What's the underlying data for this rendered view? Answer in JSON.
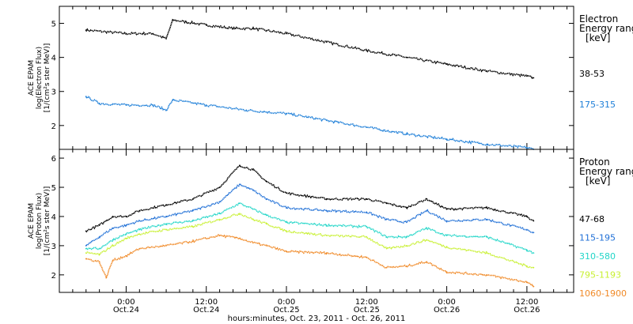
{
  "chart_data": [
    {
      "type": "line",
      "panel": "electron",
      "ylabel_lines": [
        "ACE EPAM",
        "log(Electron Flux)",
        "[1/(cm²s ster MeV)]"
      ],
      "yticks": [
        2,
        3,
        4,
        5
      ],
      "ylim": [
        1.3,
        5.5
      ],
      "legend_title": [
        "Electron",
        "Energy range",
        "[keV]"
      ],
      "series": [
        {
          "name": "38-53",
          "color": "#000000",
          "x": [
            -6,
            0,
            4,
            6,
            7,
            12,
            16,
            19,
            24,
            30,
            36,
            42,
            48,
            54,
            60,
            61
          ],
          "values": [
            4.8,
            4.7,
            4.7,
            4.55,
            5.1,
            4.95,
            4.85,
            4.85,
            4.7,
            4.45,
            4.2,
            4.0,
            3.8,
            3.6,
            3.45,
            3.4
          ]
        },
        {
          "name": "175-315",
          "color": "#1e7fd8",
          "x": [
            -6,
            -4,
            0,
            4,
            6,
            7,
            12,
            18,
            24,
            30,
            36,
            42,
            48,
            54,
            60,
            61
          ],
          "values": [
            2.85,
            2.65,
            2.6,
            2.6,
            2.45,
            2.75,
            2.6,
            2.45,
            2.35,
            2.15,
            1.95,
            1.75,
            1.6,
            1.45,
            1.35,
            1.3
          ]
        }
      ]
    },
    {
      "type": "line",
      "panel": "proton",
      "ylabel_lines": [
        "ACE EPAM",
        "log(Proton Flux)",
        "[1/(cm²s ster MeV)]"
      ],
      "yticks": [
        2,
        3,
        4,
        5,
        6
      ],
      "ylim": [
        1.4,
        6.3
      ],
      "legend_title": [
        "Proton",
        "Energy range",
        "[keV]"
      ],
      "series": [
        {
          "name": "47-68",
          "color": "#000000",
          "x": [
            -6,
            -4,
            -2,
            0,
            2,
            6,
            10,
            14,
            17,
            19,
            21,
            24,
            30,
            36,
            39,
            42,
            45,
            48,
            54,
            60,
            61
          ],
          "values": [
            3.5,
            3.7,
            4.0,
            4.0,
            4.2,
            4.4,
            4.6,
            5.0,
            5.75,
            5.6,
            5.2,
            4.8,
            4.6,
            4.6,
            4.45,
            4.3,
            4.6,
            4.25,
            4.3,
            4.0,
            3.85
          ]
        },
        {
          "name": "115-195",
          "color": "#1f6fd6",
          "x": [
            -6,
            -4,
            -2,
            0,
            2,
            6,
            10,
            14,
            17,
            19,
            21,
            24,
            30,
            36,
            39,
            42,
            45,
            48,
            54,
            60,
            61
          ],
          "values": [
            3.0,
            3.3,
            3.6,
            3.7,
            3.85,
            4.0,
            4.2,
            4.5,
            5.1,
            4.9,
            4.6,
            4.3,
            4.2,
            4.15,
            3.9,
            3.8,
            4.2,
            3.85,
            3.9,
            3.55,
            3.45
          ]
        },
        {
          "name": "310-580",
          "color": "#22d6c8",
          "x": [
            -6,
            -4,
            -2,
            0,
            2,
            6,
            10,
            14,
            17,
            19,
            21,
            24,
            30,
            36,
            39,
            42,
            45,
            48,
            54,
            60,
            61
          ],
          "values": [
            2.9,
            2.9,
            3.2,
            3.4,
            3.55,
            3.75,
            3.85,
            4.1,
            4.45,
            4.25,
            4.05,
            3.8,
            3.7,
            3.65,
            3.3,
            3.3,
            3.6,
            3.35,
            3.3,
            2.85,
            2.75
          ]
        },
        {
          "name": "795-1193",
          "color": "#c8f032",
          "x": [
            -6,
            -4,
            -2,
            0,
            2,
            6,
            10,
            14,
            17,
            19,
            21,
            24,
            30,
            36,
            39,
            42,
            45,
            48,
            54,
            60,
            61
          ],
          "values": [
            2.75,
            2.7,
            3.0,
            3.25,
            3.4,
            3.55,
            3.65,
            3.9,
            4.1,
            3.9,
            3.75,
            3.5,
            3.35,
            3.3,
            2.9,
            3.0,
            3.2,
            2.95,
            2.75,
            2.3,
            2.25
          ]
        },
        {
          "name": "1060-1900",
          "color": "#f08a28",
          "x": [
            -6,
            -4,
            -3,
            -2,
            0,
            2,
            6,
            10,
            14,
            17,
            19,
            21,
            24,
            30,
            36,
            39,
            42,
            45,
            48,
            54,
            60,
            61
          ],
          "values": [
            2.55,
            2.45,
            1.9,
            2.5,
            2.65,
            2.9,
            3.0,
            3.15,
            3.35,
            3.25,
            3.1,
            3.0,
            2.8,
            2.75,
            2.6,
            2.25,
            2.3,
            2.45,
            2.1,
            2.0,
            1.75,
            1.6
          ]
        }
      ]
    }
  ],
  "x_axis": {
    "range_hours": [
      -10,
      67
    ],
    "major_ticks": [
      {
        "x": 0,
        "time": "0:00",
        "date": "Oct.24"
      },
      {
        "x": 12,
        "time": "12:00",
        "date": "Oct.24"
      },
      {
        "x": 24,
        "time": "0:00",
        "date": "Oct.25"
      },
      {
        "x": 36,
        "time": "12:00",
        "date": "Oct.25"
      },
      {
        "x": 48,
        "time": "0:00",
        "date": "Oct.26"
      },
      {
        "x": 60,
        "time": "12:00",
        "date": "Oct.26"
      }
    ],
    "minor_every_hours": 2,
    "label": "hours:minutes, Oct. 23, 2011 - Oct. 26, 2011"
  }
}
